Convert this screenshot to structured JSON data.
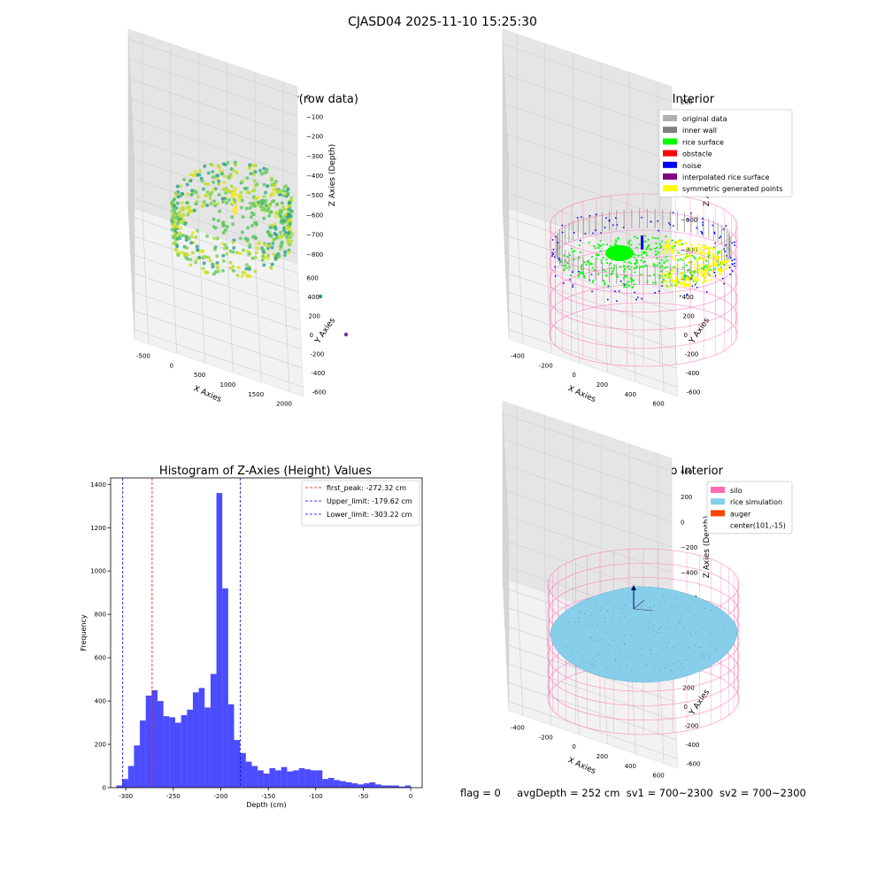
{
  "figure_title": "CJASD04 2025-11-10 15:25:30",
  "footer": {
    "flag": "flag = 0",
    "avg_depth": "avgDepth = 252 cm",
    "sv1": "sv1 = 700~2300",
    "sv2": "sv2 = 700~2300"
  },
  "colors": {
    "histogram": "#0000ff",
    "first_peak": "#ff0000",
    "limits": "#0000cc",
    "silo": "#ff69b4",
    "rice_simulation": "#87ceeb",
    "auger": "#ff4500"
  },
  "chart_data": [
    {
      "type": "scatter",
      "title": "3D Plot of Silo Interior(row data)",
      "xlabel": "X Axies",
      "ylabel": "Y Axies",
      "zlabel": "Z Axies (Depth)",
      "x_ticks": [
        "-500",
        "0",
        "500",
        "1000",
        "1500",
        "2000"
      ],
      "y_ticks": [
        "-600",
        "-400",
        "-200",
        "0",
        "200",
        "400",
        "600"
      ],
      "z_ticks": [
        "0",
        "−100",
        "−200",
        "−300",
        "−400",
        "−500",
        "−600",
        "−700",
        "−800"
      ],
      "xlim": [
        -600,
        2000
      ],
      "ylim": [
        -650,
        650
      ],
      "zlim": [
        -850,
        50
      ]
    },
    {
      "type": "scatter",
      "title": "3D classify of Silo Interior",
      "xlabel": "X Axies",
      "ylabel": "Y Axies",
      "zlabel": "Z Axies (Depth)",
      "x_ticks": [
        "-400",
        "-200",
        "0",
        "200",
        "400",
        "600"
      ],
      "y_ticks": [
        "-600",
        "-400",
        "-200",
        "0",
        "200",
        "400",
        "600"
      ],
      "z_ticks": [
        "200",
        "0",
        "−200",
        "−400",
        "−600",
        "−800"
      ],
      "legend": [
        {
          "label": "original data",
          "color": "#b0b0b0"
        },
        {
          "label": "inner wall",
          "color": "#808080"
        },
        {
          "label": "rice surface",
          "color": "#00ff00"
        },
        {
          "label": "obstacle",
          "color": "#ff0000"
        },
        {
          "label": "noise",
          "color": "#0000ff"
        },
        {
          "label": "interpolated rice surface",
          "color": "#800080"
        },
        {
          "label": "symmetric generated points",
          "color": "#ffff00"
        }
      ],
      "legend_loc": "upper right"
    },
    {
      "type": "bar",
      "title": "Histogram of Z-Axies (Height) Values",
      "xlabel": "Depth (cm)",
      "ylabel": "Frequency",
      "bin_start": -310,
      "bin_width": 6.2,
      "values": [
        10,
        40,
        100,
        195,
        310,
        425,
        450,
        400,
        330,
        325,
        300,
        335,
        360,
        440,
        460,
        370,
        525,
        1360,
        920,
        385,
        220,
        160,
        120,
        100,
        80,
        65,
        90,
        80,
        95,
        75,
        80,
        90,
        85,
        80,
        80,
        40,
        45,
        35,
        30,
        25,
        20,
        15,
        20,
        25,
        15,
        10,
        10,
        10,
        5,
        10
      ],
      "xlim": [
        -316,
        12
      ],
      "ylim": [
        0,
        1430
      ],
      "x_ticks": [
        -300,
        -250,
        -200,
        -150,
        -100,
        -50,
        0
      ],
      "y_ticks": [
        0,
        200,
        400,
        600,
        800,
        1000,
        1200,
        1400
      ],
      "vlines": [
        {
          "x": -272.32,
          "label": "first_peak: -272.32 cm",
          "color": "#ff0000"
        },
        {
          "x": -179.62,
          "label": "Upper_limit: -179.62 cm",
          "color": "#0000cc"
        },
        {
          "x": -303.22,
          "label": "Lower_limit: -303.22 cm",
          "color": "#0000cc"
        }
      ],
      "legend_loc": "upper right"
    },
    {
      "type": "surface",
      "title": "3D simulation of Silo Interior",
      "xlabel": "X Axies",
      "ylabel": "Y Axies",
      "zlabel": "Z Axies (Depth)",
      "x_ticks": [
        "-400",
        "-200",
        "0",
        "200",
        "400",
        "600"
      ],
      "y_ticks": [
        "-600",
        "-400",
        "-200",
        "0",
        "200",
        "400",
        "600"
      ],
      "z_ticks": [
        "400",
        "200",
        "0",
        "−200",
        "−400",
        "−600",
        "−800"
      ],
      "legend": [
        {
          "label": "silo",
          "color": "#ff69b4"
        },
        {
          "label": "rice simulation",
          "color": "#87ceeb"
        },
        {
          "label": "auger",
          "color": "#ff4500"
        },
        {
          "label": "center(101,-15)",
          "color": ""
        }
      ],
      "legend_loc": "upper right"
    }
  ]
}
